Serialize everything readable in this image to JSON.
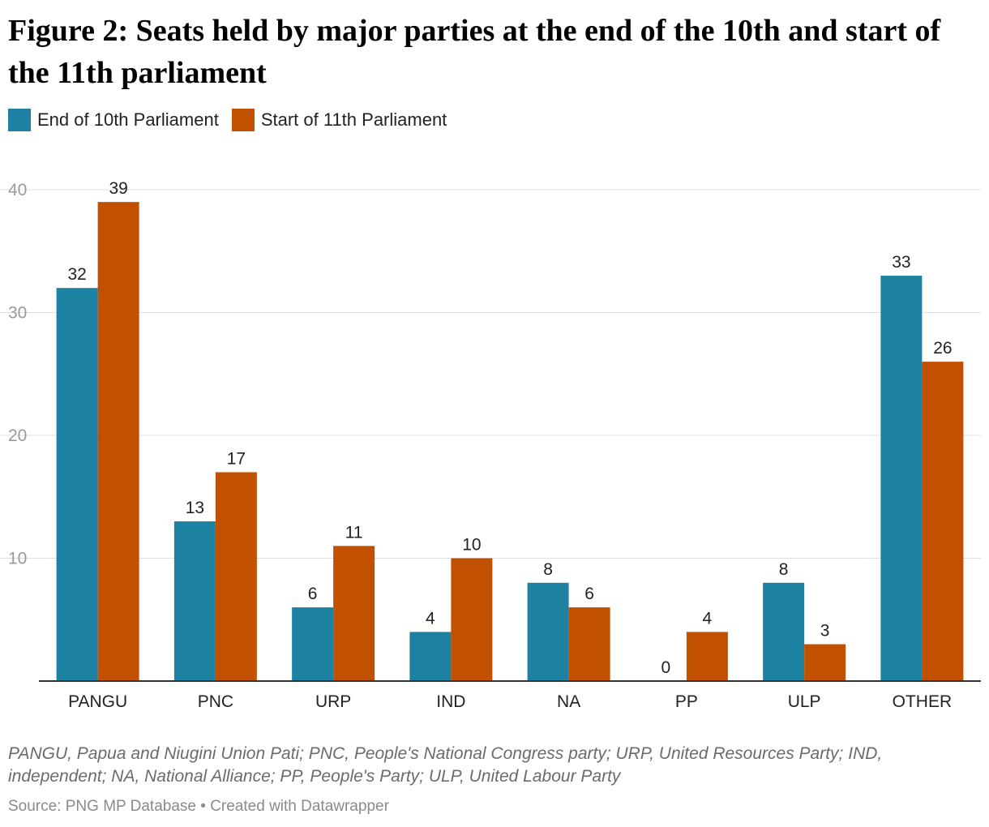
{
  "title": "Figure 2: Seats held by major parties at the end of the 10th and start of the 11th parliament",
  "notes": "PANGU, Papua and Niugini Union Pati; PNC, People's National Congress party; URP, United Resources Party; IND, independent; NA, National Alliance; PP, People's Party; ULP, United Labour Party",
  "source": "Source: PNG MP Database • Created with Datawrapper",
  "colors": {
    "series1": "#1d81a2",
    "series2": "#c15000",
    "grid": "#e0e0e0",
    "axis": "#333333",
    "tick": "#9a9a9a"
  },
  "chart_data": {
    "type": "bar",
    "title": "Figure 2: Seats held by major parties at the end of the 10th and start of the 11th parliament",
    "categories": [
      "PANGU",
      "PNC",
      "URP",
      "IND",
      "NA",
      "PP",
      "ULP",
      "OTHER"
    ],
    "series": [
      {
        "name": "End of 10th Parliament",
        "values": [
          32,
          13,
          6,
          4,
          8,
          0,
          8,
          33
        ]
      },
      {
        "name": "Start of 11th Parliament",
        "values": [
          39,
          17,
          11,
          10,
          6,
          4,
          3,
          26
        ]
      }
    ],
    "yticks": [
      10,
      20,
      30,
      40
    ],
    "ylim": [
      0,
      40
    ],
    "grid": true,
    "legend": "top-left"
  }
}
